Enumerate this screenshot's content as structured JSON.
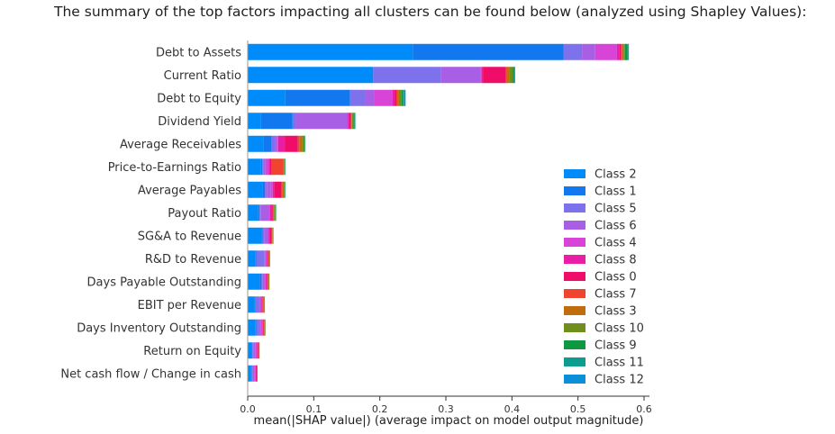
{
  "intro_text": "The summary of the top factors impacting all clusters can be found below (analyzed using Shapley Values):",
  "chart_data": {
    "type": "bar",
    "orientation": "horizontal",
    "stacked": true,
    "xlabel": "mean(|SHAP value|) (average impact on model output magnitude)",
    "ylabel": "",
    "xlim": [
      0,
      0.6
    ],
    "xticks": [
      "0.0",
      "0.1",
      "0.2",
      "0.3",
      "0.4",
      "0.5",
      "0.6"
    ],
    "grid": false,
    "legend_position": "lower-right",
    "categories": [
      "Debt to Assets",
      "Current Ratio",
      "Debt to Equity",
      "Dividend Yield",
      "Average Receivables",
      "Price-to-Earnings Ratio",
      "Average Payables",
      "Payout Ratio",
      "SG&A to Revenue",
      "R&D to Revenue",
      "Days Payable Outstanding",
      "EBIT per Revenue",
      "Days Inventory Outstanding",
      "Return on Equity",
      "Net cash flow / Change in cash"
    ],
    "series": [
      {
        "name": "Class 2",
        "color": "#008bfb",
        "values": [
          0.25,
          0.19,
          0.057,
          0.02,
          0.024,
          0.02,
          0.022,
          0.016,
          0.021,
          0.012,
          0.018,
          0.01,
          0.012,
          0.006,
          0.005
        ]
      },
      {
        "name": "Class 1",
        "color": "#1278f0",
        "values": [
          0.228,
          0.0,
          0.098,
          0.048,
          0.012,
          0.002,
          0.004,
          0.002,
          0.002,
          0.001,
          0.003,
          0.002,
          0.001,
          0.001,
          0.001
        ]
      },
      {
        "name": "Class 5",
        "color": "#7d72ec",
        "values": [
          0.028,
          0.102,
          0.023,
          0.005,
          0.005,
          0.002,
          0.003,
          0.002,
          0.002,
          0.012,
          0.002,
          0.005,
          0.004,
          0.002,
          0.002
        ]
      },
      {
        "name": "Class 6",
        "color": "#a95ee6",
        "values": [
          0.02,
          0.06,
          0.013,
          0.077,
          0.003,
          0.003,
          0.006,
          0.012,
          0.005,
          0.002,
          0.003,
          0.002,
          0.003,
          0.003,
          0.002
        ]
      },
      {
        "name": "Class 4",
        "color": "#d944d8",
        "values": [
          0.033,
          0.002,
          0.028,
          0.002,
          0.002,
          0.005,
          0.003,
          0.002,
          0.002,
          0.002,
          0.002,
          0.002,
          0.002,
          0.002,
          0.002
        ]
      },
      {
        "name": "Class 8",
        "color": "#ea1da6",
        "values": [
          0.004,
          0.002,
          0.004,
          0.002,
          0.01,
          0.002,
          0.002,
          0.002,
          0.002,
          0.001,
          0.001,
          0.001,
          0.001,
          0.001,
          0.001
        ]
      },
      {
        "name": "Class 0",
        "color": "#f00d6a",
        "values": [
          0.002,
          0.034,
          0.002,
          0.002,
          0.02,
          0.002,
          0.011,
          0.002,
          0.002,
          0.001,
          0.001,
          0.001,
          0.001,
          0.001,
          0.001
        ]
      },
      {
        "name": "Class 7",
        "color": "#f0442f",
        "values": [
          0.002,
          0.002,
          0.002,
          0.001,
          0.002,
          0.018,
          0.002,
          0.001,
          0.001,
          0.001,
          0.001,
          0.001,
          0.001,
          0.001,
          0.001
        ]
      },
      {
        "name": "Class 3",
        "color": "#c06d0b",
        "values": [
          0.002,
          0.004,
          0.002,
          0.001,
          0.004,
          0.001,
          0.002,
          0.001,
          0.001,
          0.001,
          0.001,
          0.001,
          0.001,
          0.001,
          0.0
        ]
      },
      {
        "name": "Class 10",
        "color": "#6f8e1b",
        "values": [
          0.002,
          0.005,
          0.004,
          0.002,
          0.004,
          0.001,
          0.001,
          0.002,
          0.001,
          0.001,
          0.001,
          0.001,
          0.001,
          0.0,
          0.0
        ]
      },
      {
        "name": "Class 9",
        "color": "#0f9743",
        "values": [
          0.004,
          0.002,
          0.002,
          0.002,
          0.001,
          0.001,
          0.001,
          0.001,
          0.0,
          0.0,
          0.0,
          0.0,
          0.0,
          0.0,
          0.0
        ]
      },
      {
        "name": "Class 11",
        "color": "#0e9c90",
        "values": [
          0.001,
          0.001,
          0.002,
          0.001,
          0.0,
          0.0,
          0.0,
          0.0,
          0.0,
          0.0,
          0.0,
          0.0,
          0.0,
          0.0,
          0.0
        ]
      },
      {
        "name": "Class 12",
        "color": "#0a8fd8",
        "values": [
          0.001,
          0.001,
          0.002,
          0.0,
          0.0,
          0.0,
          0.0,
          0.0,
          0.0,
          0.0,
          0.0,
          0.0,
          0.0,
          0.0,
          0.0
        ]
      }
    ]
  }
}
